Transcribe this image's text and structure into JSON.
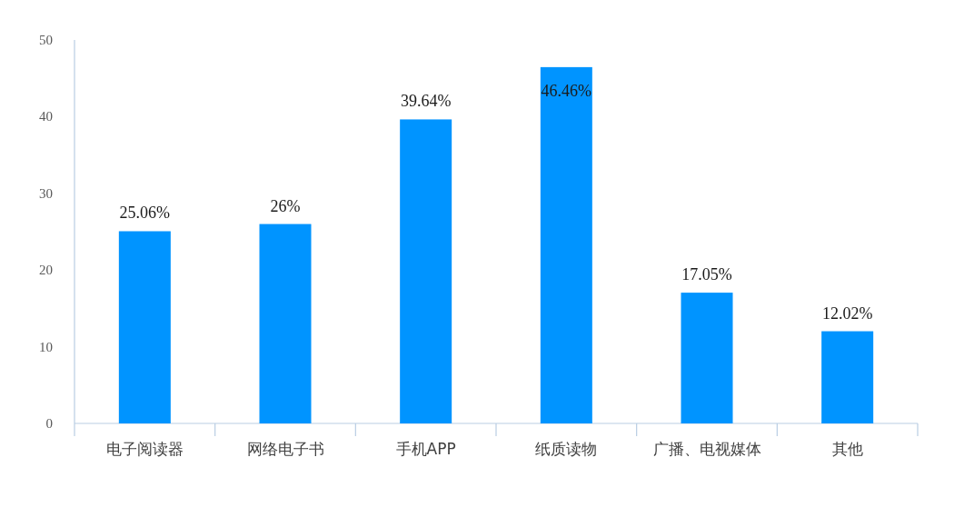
{
  "chart_data": {
    "type": "bar",
    "categories": [
      "电子阅读器",
      "网络电子书",
      "手机APP",
      "纸质读物",
      "广播、电视媒体",
      "其他"
    ],
    "values": [
      25.06,
      26,
      39.64,
      46.46,
      17.05,
      12.02
    ],
    "value_labels": [
      "25.06%",
      "26%",
      "39.64%",
      "46.46%",
      "17.05%",
      "12.02%"
    ],
    "color": "#0094ff",
    "ylim": [
      0,
      50
    ],
    "yticks": [
      0,
      10,
      20,
      30,
      40,
      50
    ]
  }
}
